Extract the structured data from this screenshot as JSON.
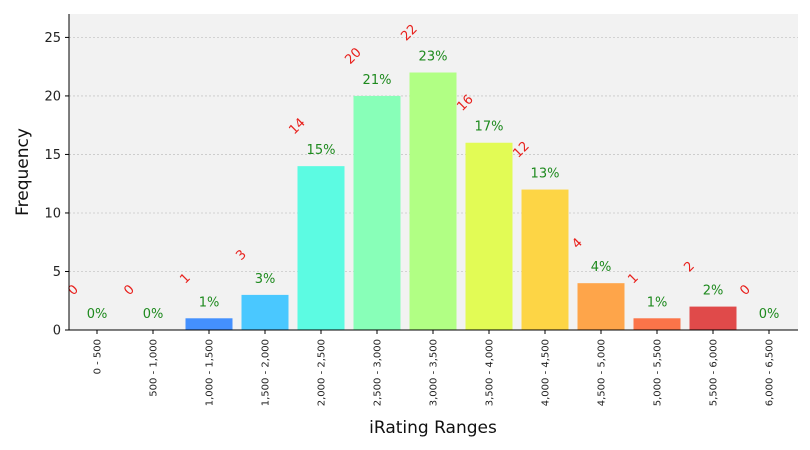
{
  "chart_data": {
    "type": "bar",
    "categories": [
      "0 - 500",
      "500 - 1,000",
      "1,000 - 1,500",
      "1,500 - 2,000",
      "2,000 - 2,500",
      "2,500 - 3,000",
      "3,000 - 3,500",
      "3,500 - 4,000",
      "4,000 - 4,500",
      "4,500 - 5,000",
      "5,000 - 5,500",
      "5,500 - 6,000",
      "6,000 - 6,500"
    ],
    "values": [
      0,
      0,
      1,
      3,
      14,
      20,
      22,
      16,
      12,
      4,
      1,
      2,
      0
    ],
    "count_labels": [
      "0",
      "0",
      "1",
      "3",
      "14",
      "20",
      "22",
      "16",
      "12",
      "4",
      "1",
      "2",
      "0"
    ],
    "percent_labels": [
      "0%",
      "0%",
      "1%",
      "3%",
      "15%",
      "21%",
      "23%",
      "17%",
      "13%",
      "4%",
      "1%",
      "2%",
      "0%"
    ],
    "colors": [
      "#30123b",
      "#4145ab",
      "#4490fe",
      "#4ac8ff",
      "#5cfbe2",
      "#88ffb8",
      "#b1ff84",
      "#e2fb55",
      "#fdd545",
      "#fea54a",
      "#fb7449",
      "#e04a4a",
      "#c41d1d"
    ],
    "xlabel": "iRating Ranges",
    "ylabel": "Frequency",
    "ylim": [
      0,
      27
    ],
    "yticks": [
      0,
      5,
      10,
      15,
      20,
      25
    ],
    "grid": true,
    "plot_background": "#f2f2f2",
    "count_label_color": "#e8211d",
    "percent_label_color": "#1e8a1e"
  }
}
